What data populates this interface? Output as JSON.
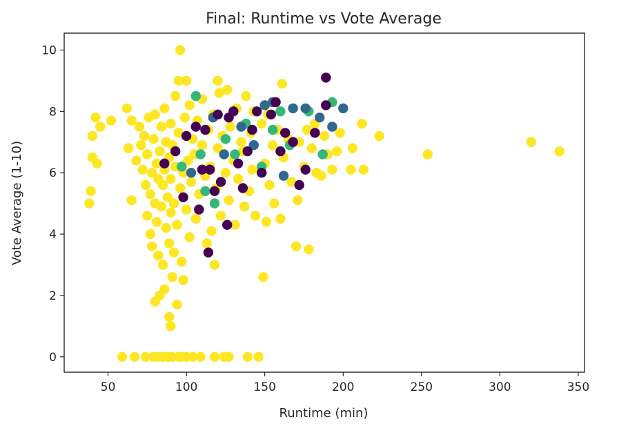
{
  "chart_data": {
    "type": "scatter",
    "title": "Final: Runtime vs Vote Average",
    "xlabel": "Runtime (min)",
    "ylabel": "Vote Average (1-10)",
    "xlim": [
      22,
      354
    ],
    "ylim": [
      -0.5,
      10.55
    ],
    "xticks": [
      50,
      100,
      150,
      200,
      250,
      300,
      350
    ],
    "yticks": [
      0,
      2,
      4,
      6,
      8,
      10
    ],
    "grid": false,
    "colors": {
      "yellow": "#fde725",
      "green": "#35b779",
      "teal": "#31688e",
      "purple": "#440154"
    },
    "series": [
      {
        "color_key": "yellow",
        "points": [
          [
            38,
            5.0
          ],
          [
            39,
            5.4
          ],
          [
            40,
            7.2
          ],
          [
            40,
            6.5
          ],
          [
            42,
            7.8
          ],
          [
            43,
            6.3
          ],
          [
            45,
            7.5
          ],
          [
            52,
            7.7
          ],
          [
            59,
            0.0
          ],
          [
            62,
            8.1
          ],
          [
            63,
            6.8
          ],
          [
            65,
            5.1
          ],
          [
            65,
            7.7
          ],
          [
            67,
            0.0
          ],
          [
            68,
            6.4
          ],
          [
            70,
            7.5
          ],
          [
            71,
            6.9
          ],
          [
            72,
            6.1
          ],
          [
            73,
            7.2
          ],
          [
            74,
            5.6
          ],
          [
            74,
            0.0
          ],
          [
            75,
            4.6
          ],
          [
            75,
            6.6
          ],
          [
            76,
            7.8
          ],
          [
            77,
            5.3
          ],
          [
            77,
            4.0
          ],
          [
            78,
            6.0
          ],
          [
            78,
            3.6
          ],
          [
            79,
            7.1
          ],
          [
            79,
            0.0
          ],
          [
            80,
            5.0
          ],
          [
            80,
            7.9
          ],
          [
            80,
            1.8
          ],
          [
            81,
            6.3
          ],
          [
            81,
            4.4
          ],
          [
            82,
            5.8
          ],
          [
            82,
            3.3
          ],
          [
            82,
            0.0
          ],
          [
            83,
            6.7
          ],
          [
            83,
            2.0
          ],
          [
            84,
            7.5
          ],
          [
            84,
            4.9
          ],
          [
            85,
            5.6
          ],
          [
            85,
            3.0
          ],
          [
            85,
            0.0
          ],
          [
            86,
            6.1
          ],
          [
            86,
            8.1
          ],
          [
            86,
            2.2
          ],
          [
            87,
            4.2
          ],
          [
            87,
            7.0
          ],
          [
            88,
            5.2
          ],
          [
            88,
            0.0
          ],
          [
            89,
            6.5
          ],
          [
            89,
            3.7
          ],
          [
            89,
            1.3
          ],
          [
            90,
            5.8
          ],
          [
            90,
            7.6
          ],
          [
            90,
            4.7
          ],
          [
            90,
            1.0
          ],
          [
            91,
            2.6
          ],
          [
            91,
            6.9
          ],
          [
            91,
            0.0
          ],
          [
            92,
            5.0
          ],
          [
            92,
            3.4
          ],
          [
            93,
            8.5
          ],
          [
            93,
            6.2
          ],
          [
            94,
            4.3
          ],
          [
            94,
            1.7
          ],
          [
            95,
            0.0
          ],
          [
            95,
            9.0
          ],
          [
            95,
            7.3
          ],
          [
            96,
            10.0
          ],
          [
            96,
            5.5
          ],
          [
            97,
            3.1
          ],
          [
            97,
            0.0
          ],
          [
            98,
            6.0
          ],
          [
            98,
            2.5
          ],
          [
            99,
            7.8
          ],
          [
            100,
            9.0
          ],
          [
            100,
            4.8
          ],
          [
            100,
            0.0
          ],
          [
            101,
            6.4
          ],
          [
            102,
            8.2
          ],
          [
            102,
            3.9
          ],
          [
            103,
            5.7
          ],
          [
            104,
            7.1
          ],
          [
            104,
            0.0
          ],
          [
            105,
            6.6
          ],
          [
            106,
            4.5
          ],
          [
            107,
            7.7
          ],
          [
            108,
            5.3
          ],
          [
            109,
            0.0
          ],
          [
            110,
            6.9
          ],
          [
            110,
            8.4
          ],
          [
            112,
            5.9
          ],
          [
            113,
            3.7
          ],
          [
            114,
            7.4
          ],
          [
            115,
            6.2
          ],
          [
            116,
            4.1
          ],
          [
            117,
            7.9
          ],
          [
            118,
            3.0
          ],
          [
            118,
            0.0
          ],
          [
            119,
            5.5
          ],
          [
            120,
            9.0
          ],
          [
            120,
            6.8
          ],
          [
            121,
            8.6
          ],
          [
            122,
            4.6
          ],
          [
            123,
            7.2
          ],
          [
            124,
            0.0
          ],
          [
            125,
            6.0
          ],
          [
            126,
            8.7
          ],
          [
            127,
            5.1
          ],
          [
            127,
            0.0
          ],
          [
            128,
            7.5
          ],
          [
            130,
            6.4
          ],
          [
            131,
            4.3
          ],
          [
            132,
            8.1
          ],
          [
            133,
            5.8
          ],
          [
            135,
            7.0
          ],
          [
            136,
            6.7
          ],
          [
            137,
            4.9
          ],
          [
            138,
            8.5
          ],
          [
            139,
            0.0
          ],
          [
            140,
            5.4
          ],
          [
            141,
            7.3
          ],
          [
            142,
            6.1
          ],
          [
            143,
            8.0
          ],
          [
            144,
            4.6
          ],
          [
            146,
            0.0
          ],
          [
            148,
            7.6
          ],
          [
            149,
            2.6
          ],
          [
            150,
            6.3
          ],
          [
            151,
            4.4
          ],
          [
            152,
            7.9
          ],
          [
            153,
            5.6
          ],
          [
            155,
            6.9
          ],
          [
            156,
            5.0
          ],
          [
            158,
            7.4
          ],
          [
            160,
            4.5
          ],
          [
            161,
            8.9
          ],
          [
            162,
            6.5
          ],
          [
            165,
            7.1
          ],
          [
            167,
            5.7
          ],
          [
            170,
            3.6
          ],
          [
            171,
            5.1
          ],
          [
            172,
            7.0
          ],
          [
            175,
            6.2
          ],
          [
            177,
            7.4
          ],
          [
            178,
            3.5
          ],
          [
            180,
            6.8
          ],
          [
            182,
            7.6
          ],
          [
            183,
            6.0
          ],
          [
            186,
            5.9
          ],
          [
            188,
            7.2
          ],
          [
            190,
            6.6
          ],
          [
            193,
            6.1
          ],
          [
            196,
            6.7
          ],
          [
            198,
            7.3
          ],
          [
            205,
            6.1
          ],
          [
            206,
            6.8
          ],
          [
            212,
            7.6
          ],
          [
            213,
            6.1
          ],
          [
            223,
            7.2
          ],
          [
            254,
            6.6
          ],
          [
            320,
            7.0
          ],
          [
            338,
            6.7
          ]
        ]
      },
      {
        "color_key": "green",
        "points": [
          [
            97,
            6.2
          ],
          [
            106,
            8.5
          ],
          [
            109,
            6.6
          ],
          [
            112,
            5.4
          ],
          [
            118,
            5.0
          ],
          [
            125,
            7.1
          ],
          [
            131,
            6.6
          ],
          [
            138,
            7.6
          ],
          [
            148,
            6.2
          ],
          [
            155,
            7.4
          ],
          [
            160,
            8.0
          ],
          [
            166,
            6.9
          ],
          [
            178,
            8.0
          ],
          [
            187,
            6.6
          ],
          [
            193,
            8.3
          ]
        ]
      },
      {
        "color_key": "teal",
        "points": [
          [
            103,
            6.0
          ],
          [
            117,
            7.8
          ],
          [
            124,
            6.6
          ],
          [
            135,
            7.5
          ],
          [
            143,
            6.9
          ],
          [
            150,
            8.2
          ],
          [
            155,
            8.3
          ],
          [
            162,
            5.9
          ],
          [
            168,
            8.1
          ],
          [
            176,
            8.1
          ],
          [
            185,
            7.8
          ],
          [
            193,
            7.5
          ],
          [
            200,
            8.1
          ]
        ]
      },
      {
        "color_key": "purple",
        "points": [
          [
            86,
            6.3
          ],
          [
            93,
            6.7
          ],
          [
            98,
            5.2
          ],
          [
            100,
            7.2
          ],
          [
            106,
            7.5
          ],
          [
            108,
            4.8
          ],
          [
            110,
            6.1
          ],
          [
            112,
            7.4
          ],
          [
            114,
            3.4
          ],
          [
            115,
            6.1
          ],
          [
            118,
            5.4
          ],
          [
            120,
            7.9
          ],
          [
            122,
            5.7
          ],
          [
            126,
            4.3
          ],
          [
            127,
            7.8
          ],
          [
            130,
            8.0
          ],
          [
            133,
            6.3
          ],
          [
            136,
            5.5
          ],
          [
            139,
            6.7
          ],
          [
            142,
            7.4
          ],
          [
            145,
            8.0
          ],
          [
            148,
            6.0
          ],
          [
            154,
            7.9
          ],
          [
            157,
            8.3
          ],
          [
            160,
            6.7
          ],
          [
            163,
            7.3
          ],
          [
            168,
            7.0
          ],
          [
            172,
            5.6
          ],
          [
            176,
            6.1
          ],
          [
            182,
            7.3
          ],
          [
            189,
            9.1
          ],
          [
            189,
            8.2
          ]
        ]
      }
    ]
  }
}
